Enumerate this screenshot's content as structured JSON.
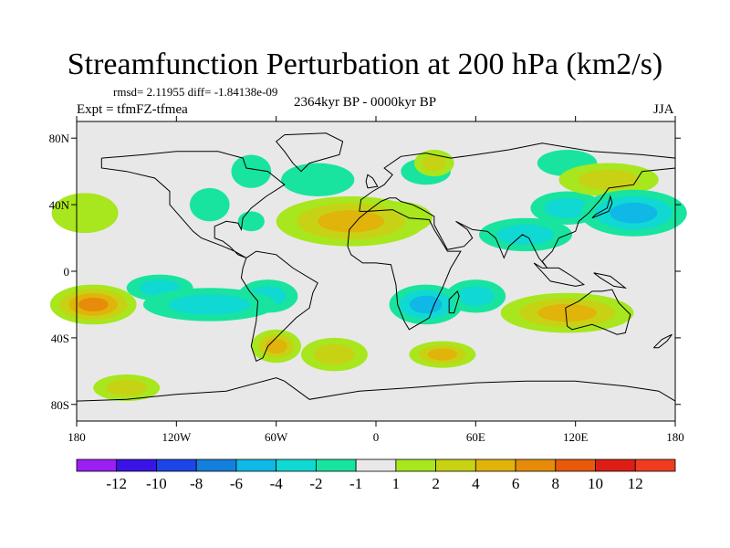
{
  "header": {
    "title": "Streamfunction Perturbation at 200 hPa (km2/s)",
    "stats": "rmsd= 2.11955 diff= -1.84138e-09",
    "experiment": "Expt = tfmFZ-tfmea",
    "period": "2364kyr BP - 0000kyr BP",
    "season": "JJA"
  },
  "chart_data": {
    "type": "heatmap",
    "title": "Streamfunction Perturbation at 200 hPa (km2/s)",
    "subtitle": "2364kyr BP - 0000kyr BP",
    "variable": "streamfunction perturbation",
    "units": "km2/s",
    "xlabel": "",
    "ylabel": "",
    "xlim": [
      -180,
      180
    ],
    "ylim": [
      -90,
      90
    ],
    "x_ticks": [
      {
        "value": -180,
        "label": "180"
      },
      {
        "value": -120,
        "label": "120W"
      },
      {
        "value": -60,
        "label": "60W"
      },
      {
        "value": 0,
        "label": "0"
      },
      {
        "value": 60,
        "label": "60E"
      },
      {
        "value": 120,
        "label": "120E"
      },
      {
        "value": 180,
        "label": "180"
      }
    ],
    "y_ticks": [
      {
        "value": 80,
        "label": "80N"
      },
      {
        "value": 40,
        "label": "40N"
      },
      {
        "value": 0,
        "label": "0"
      },
      {
        "value": -40,
        "label": "40S"
      },
      {
        "value": -80,
        "label": "80S"
      }
    ],
    "colorbar": {
      "levels": [
        -12,
        -10,
        -8,
        -6,
        -4,
        -2,
        -1,
        1,
        2,
        4,
        6,
        8,
        10,
        12
      ],
      "labels": [
        "-12",
        "-10",
        "-8",
        "-6",
        "-4",
        "-2",
        "-1",
        "1",
        "2",
        "4",
        "6",
        "8",
        "10",
        "12"
      ],
      "colors": [
        "#9b1ef5",
        "#3a14e6",
        "#1c46e6",
        "#1480dc",
        "#0fb8e6",
        "#10d8d2",
        "#18e4a0",
        "#e8e8e8",
        "#a8e61e",
        "#c8d214",
        "#e0b40a",
        "#e68c0a",
        "#e65a0a",
        "#dc1e14",
        "#f03c1e"
      ]
    },
    "anomalies": [
      {
        "name": "n-atlantic-africa-high",
        "lon": -15,
        "lat": 30,
        "rlon": 45,
        "rlat": 15,
        "value": 4.5
      },
      {
        "name": "n-africa-ridge",
        "lon": 12,
        "lat": 32,
        "rlon": 22,
        "rlat": 10,
        "value": 1.5
      },
      {
        "name": "pacific-west-high",
        "lon": -175,
        "lat": 35,
        "rlon": 20,
        "rlat": 12,
        "value": 1.6
      },
      {
        "name": "nw-pacific-low",
        "lon": 155,
        "lat": 35,
        "rlon": 32,
        "rlat": 14,
        "value": -5.5
      },
      {
        "name": "sw-pacific-trough",
        "lon": 115,
        "lat": 38,
        "rlon": 22,
        "rlat": 10,
        "value": -2.5
      },
      {
        "name": "s-asia-trough",
        "lon": 90,
        "lat": 22,
        "rlon": 28,
        "rlat": 10,
        "value": -2.2
      },
      {
        "name": "n-pacific-ridge",
        "lon": 140,
        "lat": 55,
        "rlon": 30,
        "rlat": 10,
        "value": 3.0
      },
      {
        "name": "n-pacific-low",
        "lon": -35,
        "lat": 55,
        "rlon": 22,
        "rlat": 10,
        "value": -1.8
      },
      {
        "name": "europe-high",
        "lon": 35,
        "lat": 65,
        "rlon": 12,
        "rlat": 8,
        "value": 2.0
      },
      {
        "name": "scandinavia-low",
        "lon": 30,
        "lat": 60,
        "rlon": 15,
        "rlat": 8,
        "value": -1.6
      },
      {
        "name": "arctic-high",
        "lon": 115,
        "lat": 65,
        "rlon": 18,
        "rlat": 8,
        "value": -1.8
      },
      {
        "name": "hudson-low",
        "lon": -75,
        "lat": 60,
        "rlon": 12,
        "rlat": 10,
        "value": -1.8
      },
      {
        "name": "n-america-low",
        "lon": -100,
        "lat": 40,
        "rlon": 12,
        "rlat": 10,
        "value": -1.6
      },
      {
        "name": "e-us-low",
        "lon": -75,
        "lat": 30,
        "rlon": 8,
        "rlat": 6,
        "value": -1.5
      },
      {
        "name": "se-pacific-high",
        "lon": -170,
        "lat": -20,
        "rlon": 26,
        "rlat": 12,
        "value": 6.0
      },
      {
        "name": "s-america-high",
        "lon": -60,
        "lat": -45,
        "rlon": 15,
        "rlat": 10,
        "value": 4.5
      },
      {
        "name": "s-atlantic-high",
        "lon": -25,
        "lat": -50,
        "rlon": 20,
        "rlat": 10,
        "value": 2.0
      },
      {
        "name": "s-ocean-high",
        "lon": 40,
        "lat": -50,
        "rlon": 20,
        "rlat": 8,
        "value": 4.0
      },
      {
        "name": "indian-ocean-high",
        "lon": 115,
        "lat": -25,
        "rlon": 40,
        "rlat": 12,
        "value": 4.5
      },
      {
        "name": "tropical-s-pacific-low",
        "lon": -100,
        "lat": -20,
        "rlon": 40,
        "rlat": 10,
        "value": -3.5
      },
      {
        "name": "tropical-s-america-low",
        "lon": -65,
        "lat": -15,
        "rlon": 18,
        "rlat": 10,
        "value": -3.2
      },
      {
        "name": "s-africa-low",
        "lon": 30,
        "lat": -20,
        "rlon": 22,
        "rlat": 12,
        "value": -5.0
      },
      {
        "name": "w-indian-low",
        "lon": 60,
        "lat": -15,
        "rlon": 18,
        "rlat": 10,
        "value": -2.5
      },
      {
        "name": "e-pacific-low",
        "lon": -130,
        "lat": -10,
        "rlon": 20,
        "rlat": 8,
        "value": -2.0
      },
      {
        "name": "s-pacific-ridge",
        "lon": -150,
        "lat": -70,
        "rlon": 20,
        "rlat": 8,
        "value": 2.0
      }
    ]
  }
}
